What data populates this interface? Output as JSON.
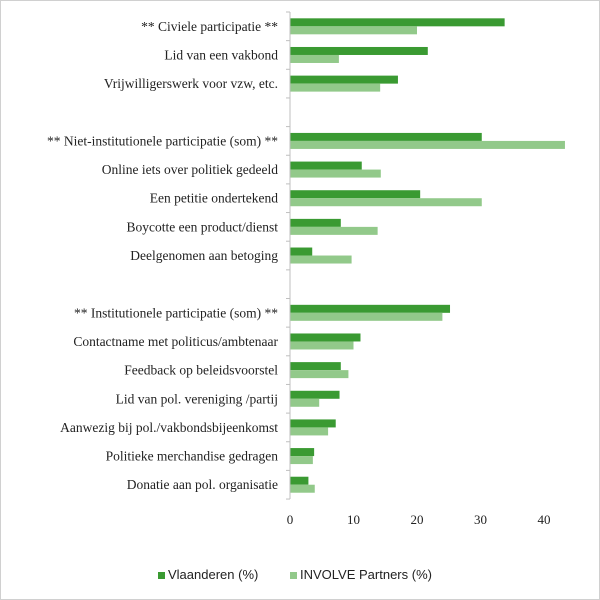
{
  "chart_data": {
    "type": "bar",
    "orientation": "horizontal",
    "categories": [
      "** Civiele participatie **",
      "Lid van een vakbond",
      "Vrijwilligerswerk voor vzw, etc.",
      "",
      "** Niet-institutionele participatie  (som) **",
      "Online iets over politiek gedeeld",
      "Een petitie ondertekend",
      "Boycotte een product/dienst",
      "Deelgenomen aan betoging",
      "",
      "** Institutionele participatie (som) **",
      "Contactname met  politicus/ambtenaar",
      "Feedback op beleidsvoorstel",
      "Lid van pol. vereniging /partij",
      "Aanwezig bij pol./vakbondsbijeenkomst",
      "Politieke merchandise gedragen",
      "Donatie aan  pol. organisatie"
    ],
    "series": [
      {
        "name": "Vlaanderen (%)",
        "color": "#3a9a32",
        "values": [
          33.8,
          21.7,
          17.0,
          null,
          30.2,
          11.3,
          20.5,
          8.0,
          3.5,
          null,
          25.2,
          11.1,
          8.0,
          7.8,
          7.2,
          3.8,
          2.9
        ]
      },
      {
        "name": "INVOLVE Partners (%)",
        "color": "#92c98a",
        "values": [
          20.0,
          7.7,
          14.2,
          null,
          43.3,
          14.3,
          30.2,
          13.8,
          9.7,
          null,
          24.0,
          10.0,
          9.2,
          4.6,
          6.0,
          3.6,
          3.9
        ]
      }
    ],
    "xticks": [
      0,
      10,
      20,
      30,
      40
    ],
    "xlim": [
      0,
      45
    ],
    "grid": false,
    "legend_position": "bottom"
  }
}
